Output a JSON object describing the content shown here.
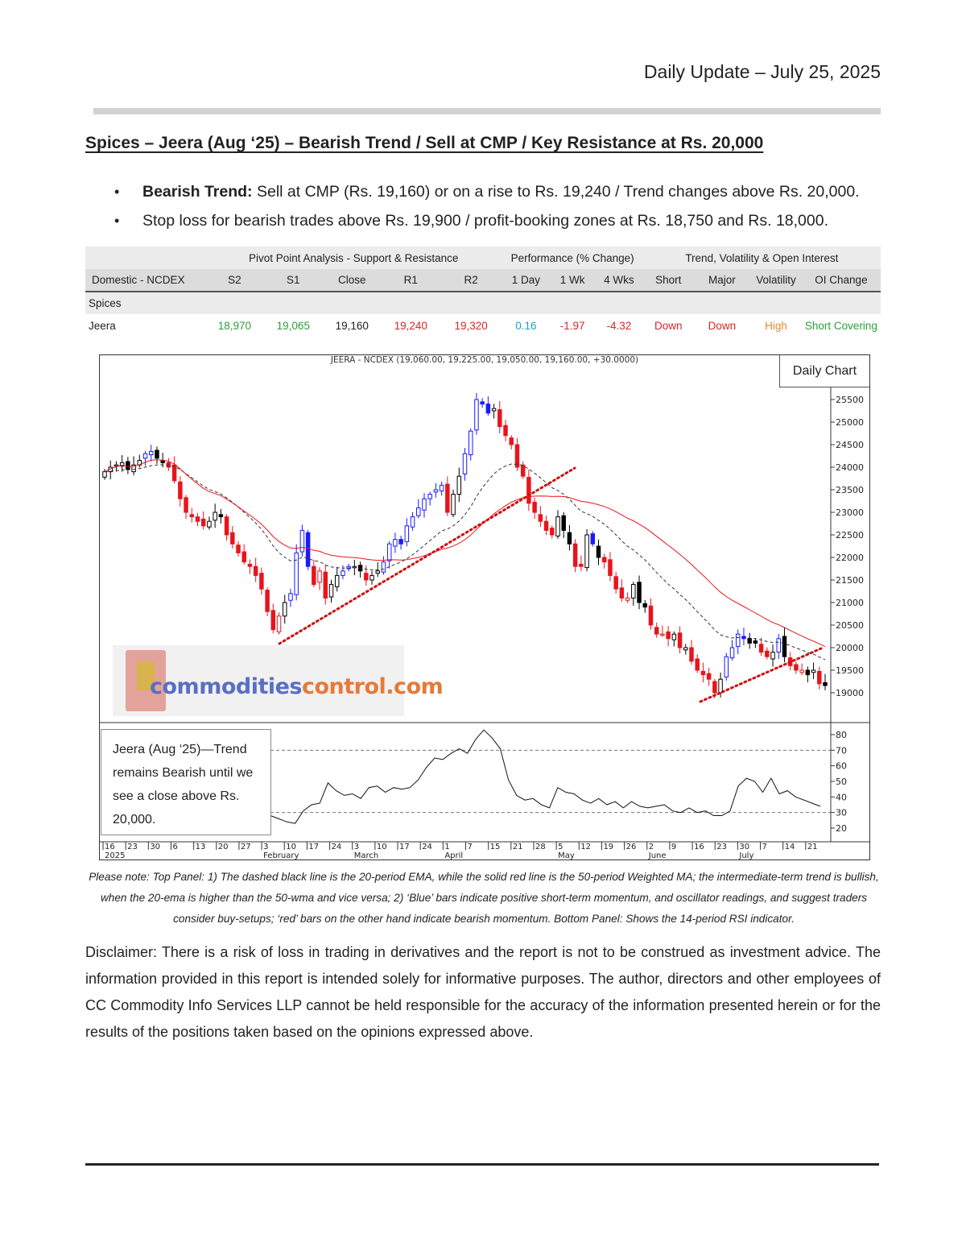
{
  "header": {
    "date_line": "Daily Update – July 25, 2025"
  },
  "title": "Spices – Jeera (Aug ‘25) – Bearish Trend / Sell at CMP / Key Resistance at Rs. 20,000",
  "bullets": [
    {
      "bold": "Bearish Trend:",
      "text": " Sell at CMP (Rs. 19,160) or on a rise to Rs. 19,240 / Trend changes above Rs. 20,000."
    },
    {
      "bold": "",
      "text": "Stop loss for bearish trades above Rs. 19,900 / profit-booking zones at Rs. 18,750 and Rs. 18,000."
    }
  ],
  "pivot_table": {
    "group_headers": [
      "Pivot Point Analysis - Support & Resistance",
      "Performance (% Change)",
      "Trend, Volatility & Open Interest"
    ],
    "columns": [
      "Domestic - NCDEX",
      "S2",
      "S1",
      "Close",
      "R1",
      "R2",
      "1 Day",
      "1 Wk",
      "4 Wks",
      "Short",
      "Major",
      "Volatility",
      "OI Change"
    ],
    "section": "Spices",
    "row": {
      "name": "Jeera",
      "s2": "18,970",
      "s1": "19,065",
      "close": "19,160",
      "r1": "19,240",
      "r2": "19,320",
      "day1": "0.16",
      "wk1": "-1.97",
      "wk4": "-4.32",
      "short": "Down",
      "major": "Down",
      "volatility": "High",
      "oi_change": "Short Covering"
    },
    "colors": {
      "support": "#2e9e3e",
      "resistance": "#d62828",
      "positive": "#1aa3c4",
      "negative": "#d62828",
      "high": "#e08a2e"
    }
  },
  "chart": {
    "header": "JEERA - NCDEX (19,060.00, 19,225.00, 19,050.00, 19,160.00, +30.0000)",
    "badge": "Daily Chart",
    "note": "Jeera (Aug ‘25)—Trend remains Bearish until we see a close above Rs. 20,000.",
    "logo_part1": "commodities",
    "logo_part2": "control.com"
  },
  "chart_data": {
    "type": "candlestick",
    "title": "JEERA - NCDEX (19,060.00, 19,225.00, 19,050.00, 19,160.00, +30.0000)",
    "price_axis": {
      "ticks": [
        19000,
        19500,
        20000,
        20500,
        21000,
        21500,
        22000,
        22500,
        23000,
        23500,
        24000,
        24500,
        25000,
        25500
      ]
    },
    "rsi_axis": {
      "ticks": [
        20,
        30,
        40,
        50,
        60,
        70,
        80
      ],
      "overbought": 70,
      "oversold": 30
    },
    "x_ticks": [
      "16",
      "23",
      "30",
      "6",
      "13",
      "20",
      "27",
      "3",
      "10",
      "17",
      "24",
      "3",
      "10",
      "17",
      "24",
      "1",
      "7",
      "15",
      "21",
      "28",
      "5",
      "12",
      "19",
      "26",
      "2",
      "9",
      "16",
      "23",
      "30",
      "7",
      "14",
      "21"
    ],
    "month_labels": [
      "2025",
      "February",
      "March",
      "April",
      "May",
      "June",
      "July"
    ],
    "colors": {
      "bull_momentum": "#1a1aff",
      "bear_momentum": "#e8141c",
      "neutral": "#000000",
      "ema20": "#333333",
      "wma50": "#e8141c",
      "trendline": "#cc1111"
    },
    "closes": [
      23900,
      24000,
      24050,
      24100,
      23950,
      24050,
      24150,
      24300,
      24350,
      24200,
      24100,
      24000,
      23700,
      23300,
      23000,
      22900,
      22800,
      22700,
      22800,
      23000,
      22900,
      22500,
      22300,
      22100,
      21900,
      21800,
      21600,
      21300,
      20800,
      20400,
      20700,
      21000,
      21200,
      22100,
      22600,
      21800,
      21400,
      21700,
      21100,
      21400,
      21600,
      21700,
      21800,
      21800,
      21700,
      21500,
      21600,
      21700,
      21900,
      22300,
      22400,
      22300,
      22700,
      22900,
      23100,
      23300,
      23400,
      23500,
      23600,
      23000,
      23400,
      23800,
      24300,
      24800,
      25500,
      25400,
      25200,
      25300,
      24900,
      24700,
      24500,
      24000,
      23800,
      23200,
      23000,
      22800,
      22600,
      22500,
      22900,
      22600,
      22300,
      21800,
      21800,
      22500,
      22300,
      22000,
      21900,
      21600,
      21300,
      21100,
      21100,
      21400,
      21000,
      20900,
      20500,
      20300,
      20300,
      20200,
      20300,
      20000,
      20000,
      19700,
      19500,
      19400,
      19300,
      19000,
      19300,
      19800,
      20000,
      20300,
      20200,
      20100,
      20100,
      19900,
      19800,
      19900,
      20200,
      19800,
      19600,
      19500,
      19500,
      19400,
      19500,
      19200,
      19160
    ],
    "rsi": [
      28,
      26,
      24,
      23,
      31,
      35,
      36,
      49,
      44,
      41,
      42,
      39,
      46,
      47,
      43,
      46,
      45,
      46,
      51,
      59,
      65,
      64,
      68,
      71,
      68,
      77,
      83,
      78,
      71,
      51,
      41,
      38,
      39,
      35,
      33,
      46,
      43,
      42,
      38,
      36,
      39,
      35,
      37,
      33,
      37,
      34,
      33,
      34,
      35,
      31,
      30,
      33,
      30,
      31,
      28,
      28,
      31,
      47,
      52,
      50,
      43,
      52,
      42,
      44,
      40,
      38,
      36,
      34
    ]
  },
  "footnote": "Please note: Top Panel: 1) The dashed black line is the 20-period EMA, while the solid red line is the 50-period Weighted MA; the intermediate-term trend is bullish, when the 20-ema is higher than the 50-wma and vice versa; 2) ‘Blue’ bars indicate positive short-term momentum, and oscillator readings, and suggest traders consider buy-setups; ‘red’ bars on the other hand indicate bearish momentum. Bottom Panel: Shows the 14-period RSI indicator.",
  "disclaimer": "Disclaimer: There is a risk of loss in trading in derivatives and the report is not to be construed as investment advice. The information provided in this report is intended solely for informative purposes. The author, directors and other employees of CC Commodity Info Services LLP cannot be held responsible for the accuracy of the information presented herein or for the results of the positions taken based on the opinions expressed above."
}
